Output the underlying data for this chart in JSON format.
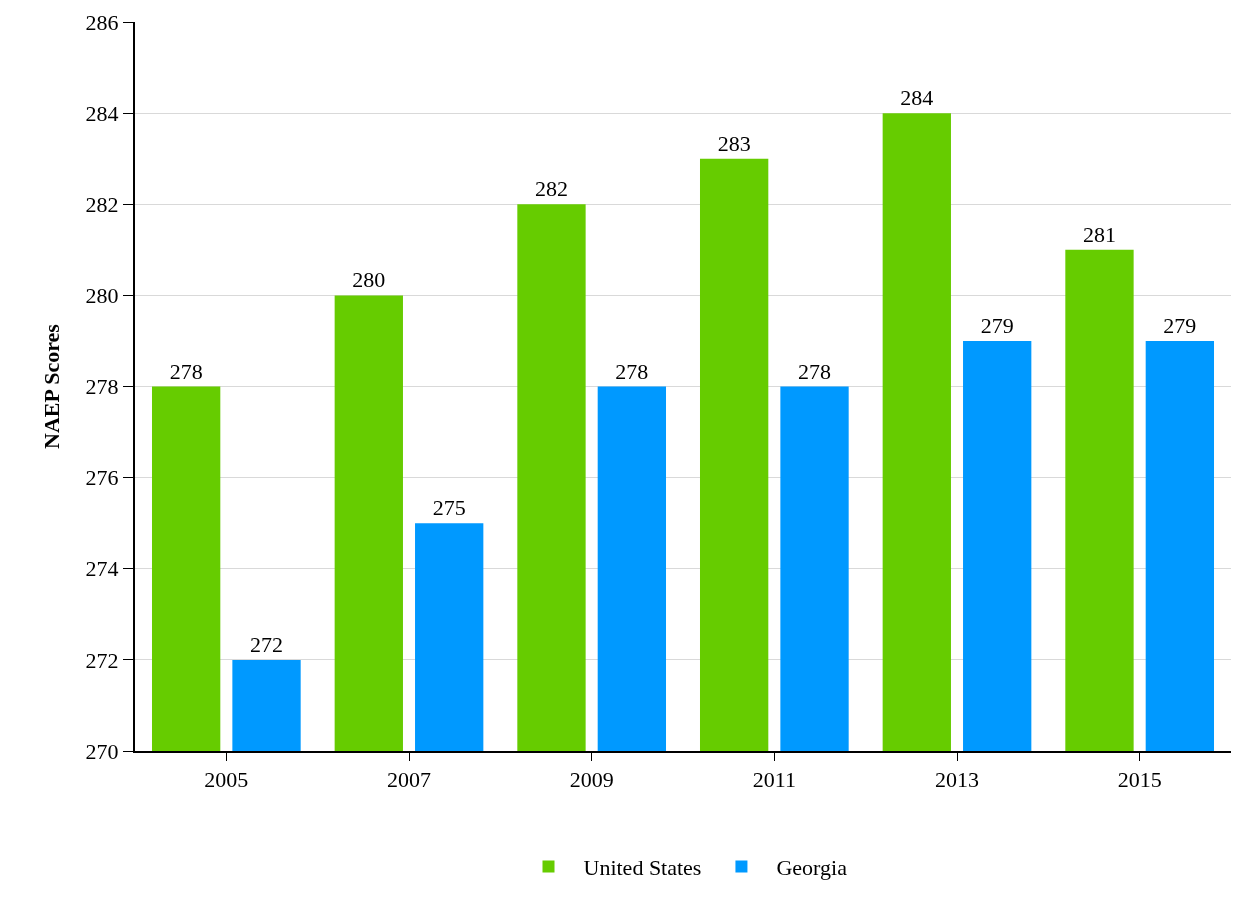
{
  "chart_data": {
    "type": "bar",
    "ylabel": "NAEP Scores",
    "categories": [
      "2005",
      "2007",
      "2009",
      "2011",
      "2013",
      "2015"
    ],
    "series": [
      {
        "name": "United States",
        "color": "#66cc00",
        "values": [
          278,
          280,
          282,
          283,
          284,
          281
        ]
      },
      {
        "name": "Georgia",
        "color": "#0099ff",
        "values": [
          272,
          275,
          278,
          278,
          279,
          279
        ]
      }
    ],
    "ylim": [
      270,
      286
    ],
    "yticks": [
      270,
      272,
      274,
      276,
      278,
      280,
      282,
      284,
      286
    ],
    "grid": "y",
    "legend": "bottom",
    "data_labels": true
  }
}
